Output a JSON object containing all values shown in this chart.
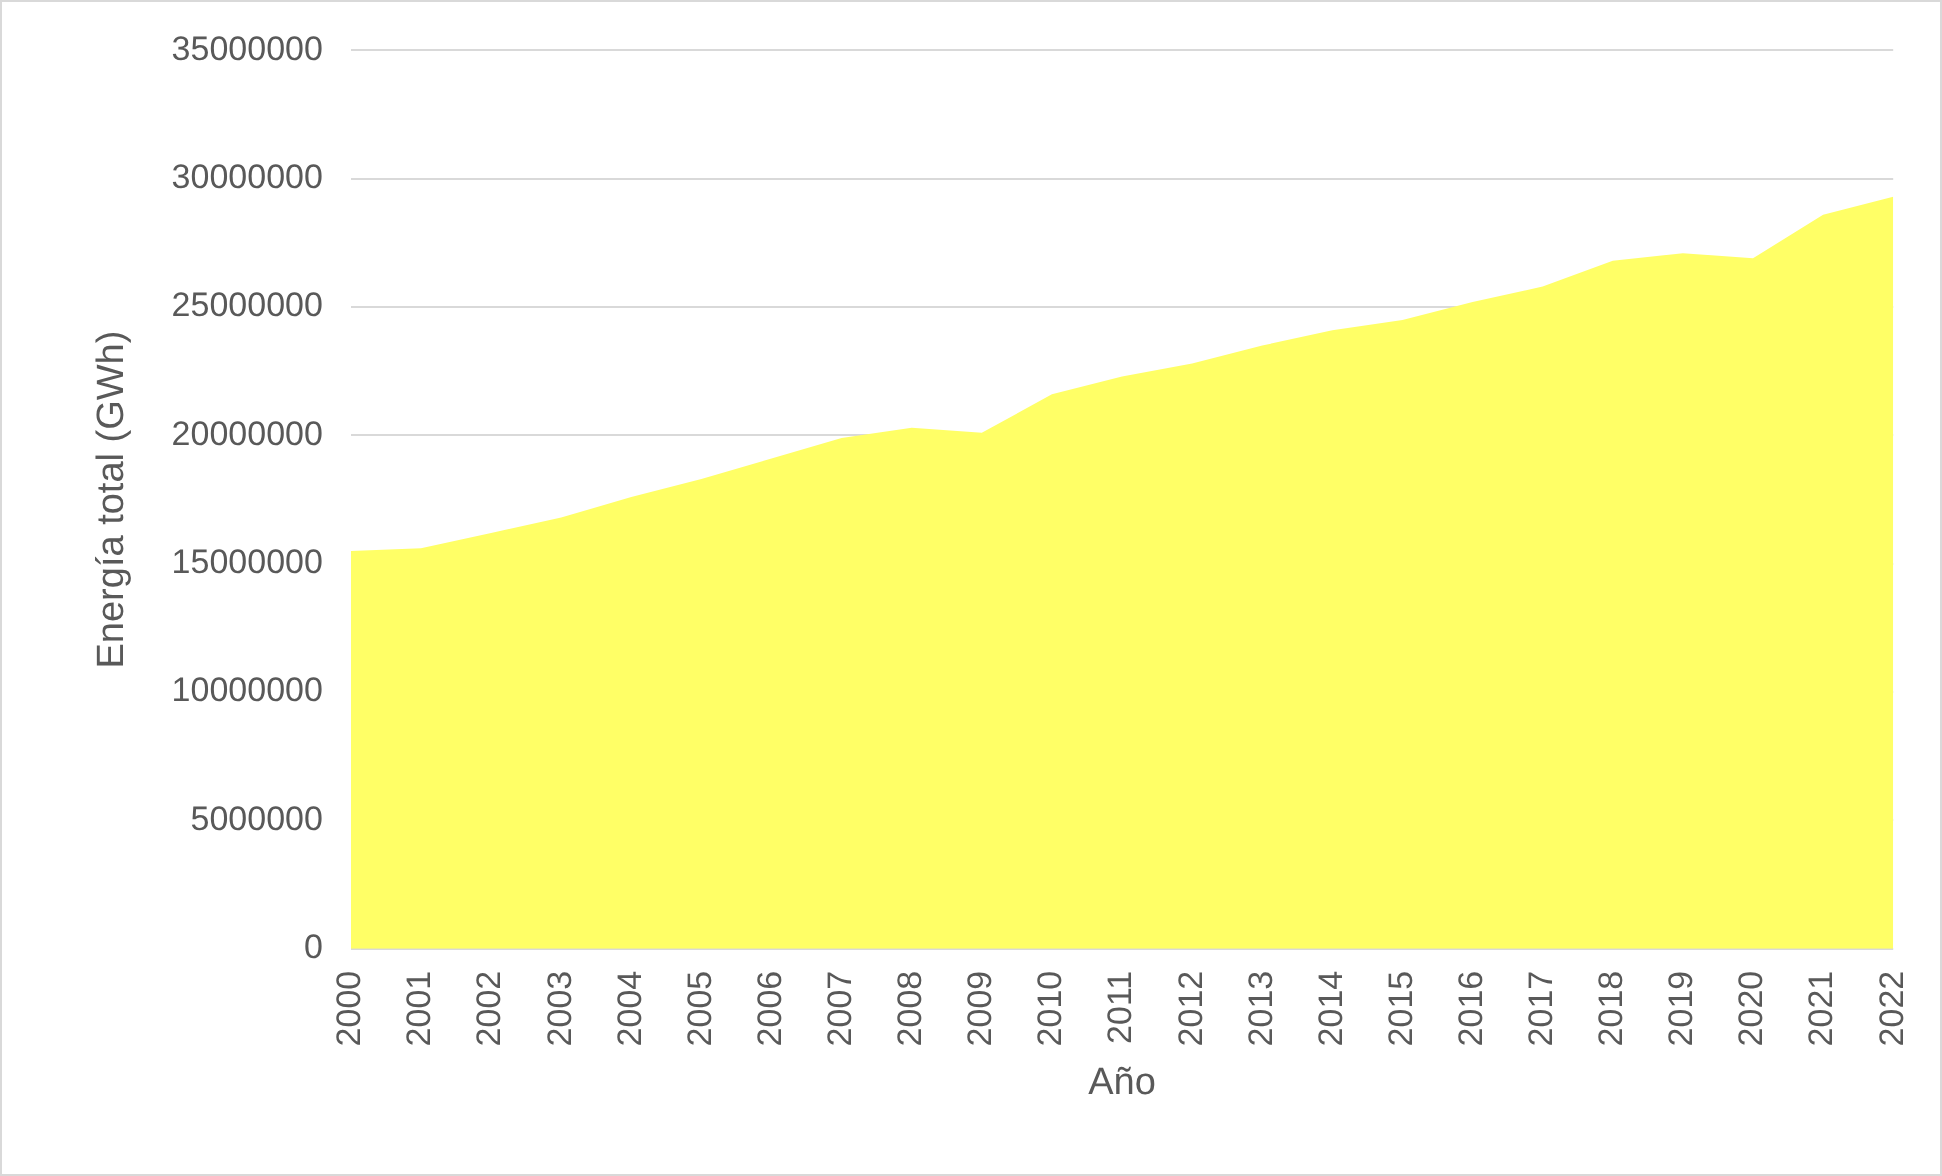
{
  "chart_data": {
    "type": "area",
    "xlabel": "Año",
    "ylabel": "Energía total (GWh)",
    "categories": [
      "2000",
      "2001",
      "2002",
      "2003",
      "2004",
      "2005",
      "2006",
      "2007",
      "2008",
      "2009",
      "2010",
      "2011",
      "2012",
      "2013",
      "2014",
      "2015",
      "2016",
      "2017",
      "2018",
      "2019",
      "2020",
      "2021",
      "2022"
    ],
    "series": [
      {
        "color": "#ffff66",
        "values": [
          15500000,
          15600000,
          16200000,
          16800000,
          17600000,
          18300000,
          19100000,
          19900000,
          20300000,
          20100000,
          21600000,
          22300000,
          22800000,
          23500000,
          24100000,
          24500000,
          25200000,
          25800000,
          26800000,
          27100000,
          26900000,
          28600000,
          29300000
        ]
      }
    ],
    "ylim": [
      0,
      35000000
    ],
    "yticks": [
      0,
      5000000,
      10000000,
      15000000,
      20000000,
      25000000,
      30000000,
      35000000
    ],
    "grid": "y",
    "legend": false
  }
}
